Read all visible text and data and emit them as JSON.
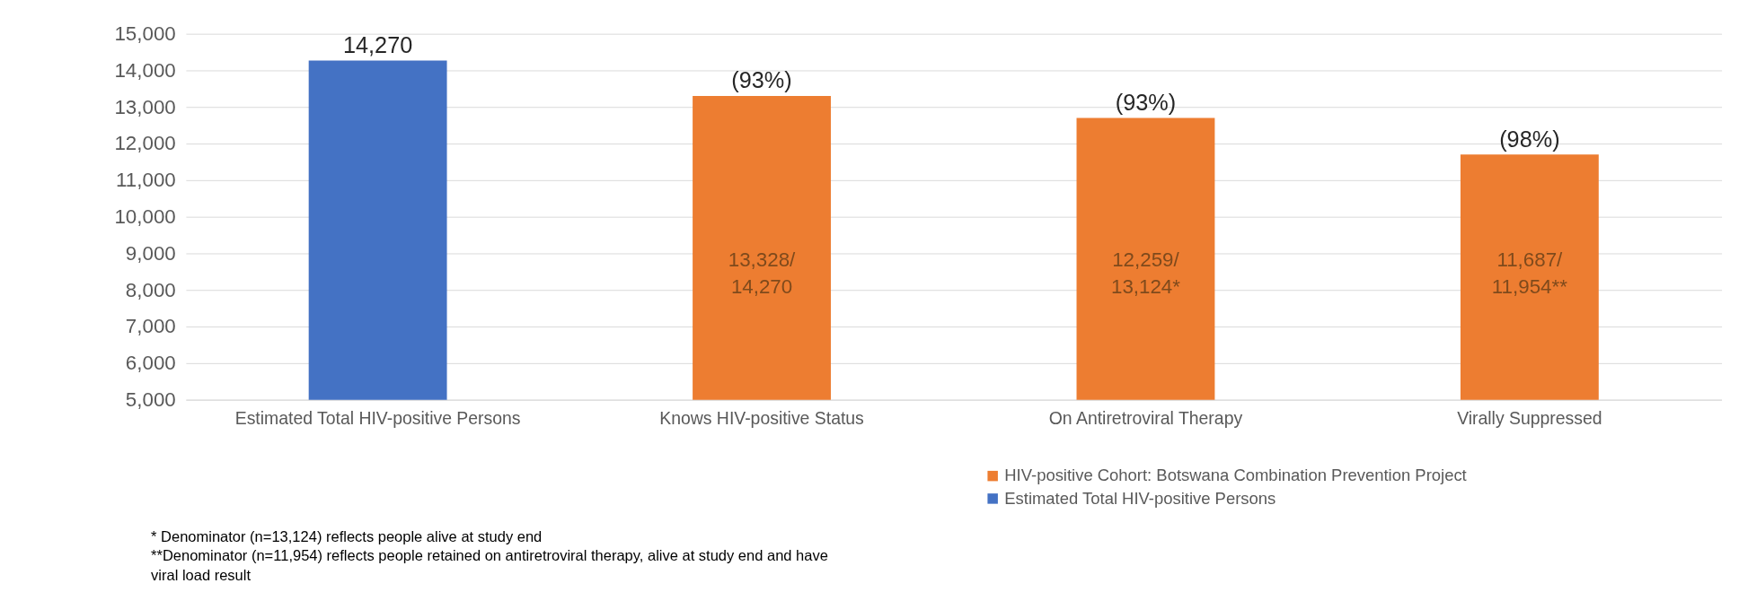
{
  "chart_data": {
    "type": "bar",
    "categories": [
      "Estimated Total HIV-positive Persons",
      "Knows HIV-positive Status",
      "On Antiretroviral Therapy",
      "Virally Suppressed"
    ],
    "series": [
      {
        "name": "HIV-positive Cohort: Botswana Combination Prevention Project",
        "color": "#ed7d31",
        "values": [
          null,
          13300,
          12700,
          11700
        ]
      },
      {
        "name": "Estimated Total HIV-positive Persons",
        "color": "#4472c4",
        "values": [
          14270,
          null,
          null,
          null
        ],
        "value_labels": [
          "14,270",
          null,
          null,
          null
        ]
      }
    ],
    "ylim": [
      5000,
      15000
    ],
    "yticks": [
      {
        "value": 5000,
        "label": "5,000"
      },
      {
        "value": 6000,
        "label": "6,000"
      },
      {
        "value": 7000,
        "label": "7,000"
      },
      {
        "value": 8000,
        "label": "8,000"
      },
      {
        "value": 9000,
        "label": "9,000"
      },
      {
        "value": 10000,
        "label": "10,000"
      },
      {
        "value": 11000,
        "label": "11,000"
      },
      {
        "value": 12000,
        "label": "12,000"
      },
      {
        "value": 13000,
        "label": "13,000"
      },
      {
        "value": 14000,
        "label": "14,000"
      },
      {
        "value": 15000,
        "label": "15,000"
      }
    ],
    "grid": "y",
    "legend": "bottom",
    "annotations": [
      {
        "text": "(93%)",
        "x": "Knows HIV-positive Status",
        "y": 13300
      },
      {
        "text": "(93%)",
        "x": "On Antiretroviral Therapy",
        "y": 12700
      },
      {
        "text": "(98%)",
        "x": "Virally Suppressed",
        "y": 11700
      },
      "13,328/ 14,270",
      "12,259/ 13,124*",
      "11,687/ 11,954**",
      "* Denominator (n=13,124) reflects people alive at study end",
      "**Denominator (n=11,954) reflects people retained on antiretroviral therapy, alive at study end and have viral load result"
    ]
  }
}
